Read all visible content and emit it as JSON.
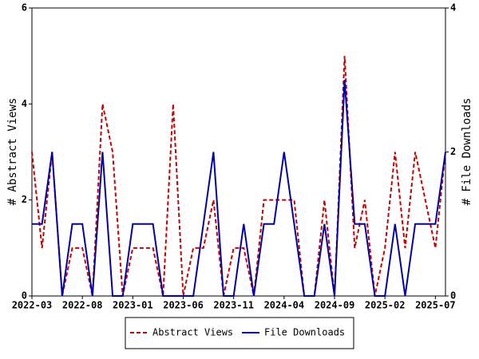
{
  "chart_data": {
    "type": "line",
    "y_label": "# Abstract Views",
    "y2_label": "# File Downloads",
    "categories": [
      "2022-03",
      null,
      null,
      null,
      null,
      "2022-08",
      null,
      null,
      null,
      null,
      "2023-01",
      null,
      null,
      null,
      null,
      "2023-06",
      null,
      null,
      null,
      null,
      "2023-11",
      null,
      null,
      null,
      null,
      "2024-04",
      null,
      null,
      null,
      null,
      "2024-09",
      null,
      null,
      null,
      null,
      "2025-02",
      null,
      null,
      null,
      null,
      "2025-07",
      null
    ],
    "series": [
      {
        "name": "Abstract Views",
        "color": "#cc0000",
        "dashed": true,
        "values": [
          3,
          1,
          3,
          0,
          1,
          1,
          0,
          4,
          3,
          0,
          1,
          1,
          1,
          0,
          4,
          0,
          1,
          1,
          2,
          0,
          1,
          1,
          0,
          2,
          2,
          2,
          2,
          0,
          0,
          2,
          0,
          5,
          1,
          2,
          0,
          1,
          3,
          1,
          3,
          2,
          1,
          3
        ]
      },
      {
        "name": "File Downloads",
        "color": "#0000aa",
        "axis": "y2",
        "values": [
          1,
          1,
          2,
          0,
          1,
          1,
          0,
          2,
          0,
          0,
          1,
          1,
          1,
          0,
          0,
          0,
          0,
          1,
          2,
          0,
          0,
          1,
          0,
          1,
          1,
          2,
          1,
          0,
          0,
          1,
          0,
          3,
          1,
          1,
          0,
          0,
          1,
          0,
          1,
          1,
          1,
          2
        ]
      }
    ],
    "ylim": [
      0,
      6
    ],
    "yticks": [
      0,
      2,
      4,
      6
    ],
    "y2lim": [
      0,
      4
    ],
    "y2ticks": [
      0,
      2,
      4
    ],
    "legend": "bottom"
  }
}
